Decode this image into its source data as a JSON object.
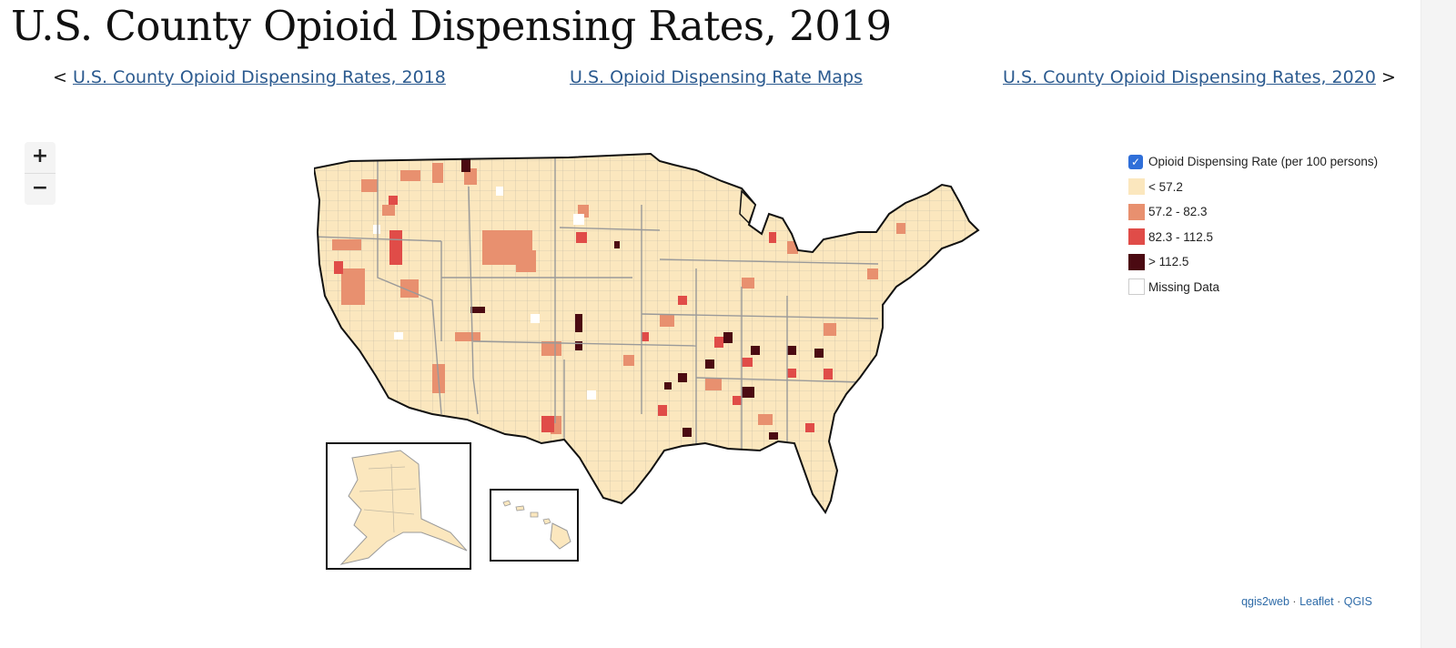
{
  "page": {
    "title": "U.S. County Opioid Dispensing Rates, 2019"
  },
  "nav": {
    "prev_symbol": "<",
    "prev_label": "U.S. County Opioid Dispensing Rates, 2018",
    "center_label": "U.S. Opioid Dispensing Rate Maps",
    "next_label": "U.S. County Opioid Dispensing Rates, 2020",
    "next_symbol": ">"
  },
  "zoom": {
    "in_label": "+",
    "out_label": "−"
  },
  "legend": {
    "layer_checked": true,
    "layer_label": "Opioid Dispensing Rate (per 100 persons)",
    "classes": [
      {
        "label": "< 57.2",
        "color": "#fbe7be"
      },
      {
        "label": "57.2 - 82.3",
        "color": "#e8906f"
      },
      {
        "label": "82.3 - 112.5",
        "color": "#e04c48"
      },
      {
        "label": "> 112.5",
        "color": "#4b0a12"
      },
      {
        "label": "Missing Data",
        "color": "#ffffff"
      }
    ]
  },
  "attribution": {
    "qgis2web": "qgis2web",
    "sep1": "·",
    "leaflet": "Leaflet",
    "sep2": "·",
    "qgis": "QGIS"
  }
}
